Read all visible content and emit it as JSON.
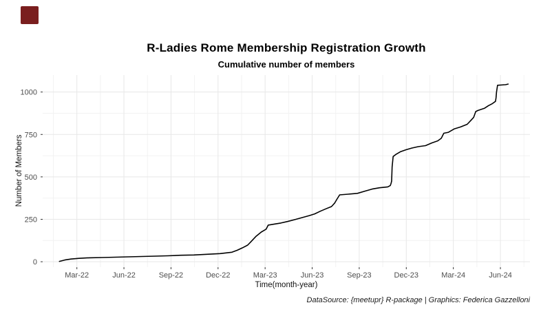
{
  "page": {
    "background_color": "#ffffff",
    "marker_square_color": "#7a1e1e"
  },
  "header": {
    "title": "R-Ladies Rome Membership Registration Growth",
    "subtitle": "Cumulative number of members"
  },
  "caption": "DataSource: {meetupr} R-package | Graphics: Federica Gazzelloni",
  "chart_data": {
    "type": "line",
    "title": "R-Ladies Rome Membership Registration Growth",
    "subtitle": "Cumulative number of members",
    "xlabel": "Time(month-year)",
    "ylabel": "Number of Members",
    "legend": "none",
    "grid": "major and minor, light gray on white",
    "line_color": "#000000",
    "grid_major_color": "#e7e7e7",
    "grid_minor_color": "#f2f2f2",
    "tick_color": "#333333",
    "x_range": [
      "2021-12-26",
      "2024-07-28"
    ],
    "y_range": [
      -32,
      1100
    ],
    "x_ticks": [
      {
        "date": "2022-03-01",
        "label": "Mar-22"
      },
      {
        "date": "2022-06-01",
        "label": "Jun-22"
      },
      {
        "date": "2022-09-01",
        "label": "Sep-22"
      },
      {
        "date": "2022-12-01",
        "label": "Dec-22"
      },
      {
        "date": "2023-03-01",
        "label": "Mar-23"
      },
      {
        "date": "2023-06-01",
        "label": "Jun-23"
      },
      {
        "date": "2023-09-01",
        "label": "Sep-23"
      },
      {
        "date": "2023-12-01",
        "label": "Dec-23"
      },
      {
        "date": "2024-03-01",
        "label": "Mar-24"
      },
      {
        "date": "2024-06-01",
        "label": "Jun-24"
      }
    ],
    "y_ticks": [
      0,
      250,
      500,
      750,
      1000
    ],
    "y_minor_ticks": [
      125,
      375,
      625,
      875
    ],
    "series": [
      {
        "name": "Cumulative members",
        "points": [
          [
            "2022-01-28",
            2
          ],
          [
            "2022-02-08",
            10
          ],
          [
            "2022-02-20",
            16
          ],
          [
            "2022-03-05",
            20
          ],
          [
            "2022-03-25",
            23
          ],
          [
            "2022-04-20",
            25
          ],
          [
            "2022-05-15",
            27
          ],
          [
            "2022-06-10",
            29
          ],
          [
            "2022-07-05",
            31
          ],
          [
            "2022-08-01",
            33
          ],
          [
            "2022-08-25",
            35
          ],
          [
            "2022-09-20",
            38
          ],
          [
            "2022-10-15",
            40
          ],
          [
            "2022-11-10",
            44
          ],
          [
            "2022-12-05",
            48
          ],
          [
            "2022-12-28",
            56
          ],
          [
            "2023-01-08",
            68
          ],
          [
            "2023-01-18",
            82
          ],
          [
            "2023-01-28",
            98
          ],
          [
            "2023-02-03",
            115
          ],
          [
            "2023-02-14",
            150
          ],
          [
            "2023-02-24",
            175
          ],
          [
            "2023-03-03",
            192
          ],
          [
            "2023-03-07",
            216
          ],
          [
            "2023-03-18",
            221
          ],
          [
            "2023-04-01",
            228
          ],
          [
            "2023-04-14",
            237
          ],
          [
            "2023-04-28",
            248
          ],
          [
            "2023-05-12",
            260
          ],
          [
            "2023-05-26",
            272
          ],
          [
            "2023-06-06",
            282
          ],
          [
            "2023-06-17",
            298
          ],
          [
            "2023-06-28",
            312
          ],
          [
            "2023-07-08",
            325
          ],
          [
            "2023-07-14",
            345
          ],
          [
            "2023-07-19",
            370
          ],
          [
            "2023-07-24",
            394
          ],
          [
            "2023-08-10",
            398
          ],
          [
            "2023-08-28",
            403
          ],
          [
            "2023-09-12",
            416
          ],
          [
            "2023-09-26",
            428
          ],
          [
            "2023-10-10",
            436
          ],
          [
            "2023-10-26",
            441
          ],
          [
            "2023-10-31",
            449
          ],
          [
            "2023-11-02",
            462
          ],
          [
            "2023-11-03",
            475
          ],
          [
            "2023-11-04",
            558
          ],
          [
            "2023-11-06",
            620
          ],
          [
            "2023-11-12",
            634
          ],
          [
            "2023-11-20",
            648
          ],
          [
            "2023-12-01",
            660
          ],
          [
            "2023-12-12",
            670
          ],
          [
            "2023-12-24",
            678
          ],
          [
            "2024-01-08",
            684
          ],
          [
            "2024-01-20",
            700
          ],
          [
            "2024-02-01",
            712
          ],
          [
            "2024-02-08",
            727
          ],
          [
            "2024-02-11",
            745
          ],
          [
            "2024-02-13",
            757
          ],
          [
            "2024-02-22",
            763
          ],
          [
            "2024-03-03",
            783
          ],
          [
            "2024-03-15",
            794
          ],
          [
            "2024-03-28",
            810
          ],
          [
            "2024-04-04",
            831
          ],
          [
            "2024-04-10",
            851
          ],
          [
            "2024-04-14",
            885
          ],
          [
            "2024-04-18",
            891
          ],
          [
            "2024-05-01",
            905
          ],
          [
            "2024-05-08",
            919
          ],
          [
            "2024-05-16",
            932
          ],
          [
            "2024-05-22",
            945
          ],
          [
            "2024-05-23",
            966
          ],
          [
            "2024-05-24",
            1000
          ],
          [
            "2024-05-26",
            1040
          ],
          [
            "2024-06-11",
            1043
          ],
          [
            "2024-06-16",
            1047
          ]
        ]
      }
    ]
  }
}
